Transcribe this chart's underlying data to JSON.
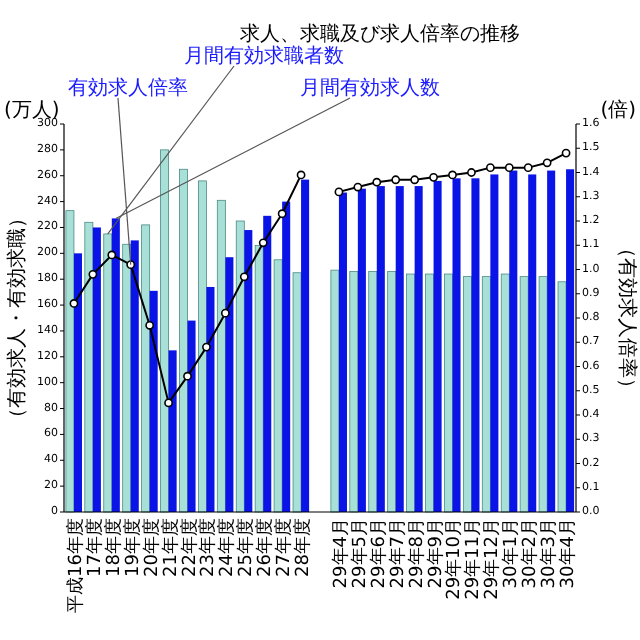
{
  "chart_data": {
    "type": "bar",
    "title": "求人、求職及び求人倍率の推移",
    "ylabel": "（有効求人・有効求職）",
    "y2label": "（有効求人倍率）",
    "annotations": [
      "(万人)",
      "(倍)"
    ],
    "categories": [
      "平成16年度",
      "17年度",
      "18年度",
      "19年度",
      "20年度",
      "21年度",
      "22年度",
      "23年度",
      "24年度",
      "25年度",
      "26年度",
      "27年度",
      "28年度",
      null,
      "29年4月",
      "29年5月",
      "29年6月",
      "29年7月",
      "29年8月",
      "29年9月",
      "29年10月",
      "29年11月",
      "29年12月",
      "30年1月",
      "30年2月",
      "30年3月",
      "30年4月"
    ],
    "series": [
      {
        "name": "月間有効求職者数",
        "color": "#a8e0d8",
        "values": [
          233,
          224,
          215,
          207,
          222,
          280,
          265,
          256,
          241,
          225,
          206,
          195,
          185,
          null,
          187,
          186,
          186,
          186,
          184,
          184,
          184,
          182,
          182,
          184,
          182,
          182,
          178
        ]
      },
      {
        "name": "月間有効求人数",
        "color": "#0a14e6",
        "values": [
          200,
          220,
          227,
          210,
          171,
          125,
          148,
          174,
          197,
          218,
          229,
          240,
          257,
          null,
          247,
          250,
          252,
          252,
          252,
          256,
          258,
          258,
          261,
          264,
          261,
          264,
          265
        ]
      },
      {
        "name": "有効求人倍率",
        "type": "line",
        "axis": "y2",
        "color": "#000000",
        "values": [
          0.86,
          0.98,
          1.06,
          1.02,
          0.77,
          0.45,
          0.56,
          0.68,
          0.82,
          0.97,
          1.11,
          1.23,
          1.39,
          null,
          1.32,
          1.34,
          1.36,
          1.37,
          1.37,
          1.38,
          1.39,
          1.4,
          1.42,
          1.42,
          1.42,
          1.44,
          1.48
        ]
      }
    ],
    "ylim": [
      0,
      300
    ],
    "yticks": [
      0,
      20,
      40,
      60,
      80,
      100,
      120,
      140,
      160,
      180,
      200,
      220,
      240,
      260,
      280,
      300
    ],
    "y2lim": [
      0,
      1.6
    ],
    "y2ticks": [
      {
        "value": 0,
        "label": "0.0"
      },
      0.1,
      0.2,
      0.3,
      0.4,
      0.5,
      0.6,
      0.7,
      0.8,
      0.9,
      {
        "value": 1,
        "label": "1.0"
      },
      1.1,
      1.2,
      1.3,
      1.4,
      1.5,
      1.6
    ],
    "marker": "circle",
    "legend": false
  }
}
